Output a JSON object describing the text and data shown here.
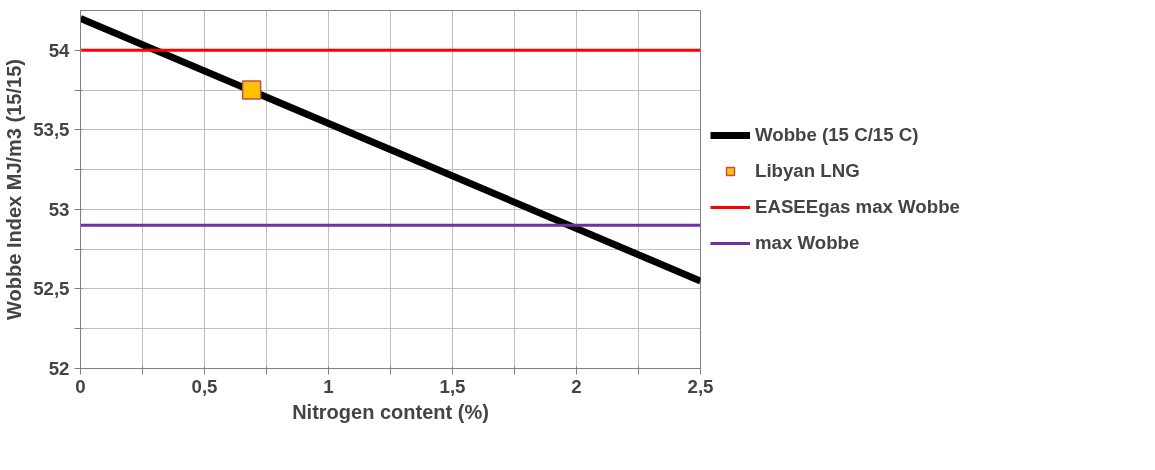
{
  "chart_data": {
    "type": "line",
    "xlabel": "Nitrogen content (%)",
    "ylabel": "Wobbe Index MJ/m3 (15/15)",
    "xlim": [
      0,
      2.5
    ],
    "ylim": [
      52,
      54.25
    ],
    "xticks": [
      0,
      {
        "value": 0.25,
        "label": null
      },
      {
        "value": 0.5,
        "label": "0,5"
      },
      {
        "value": 0.75,
        "label": null
      },
      1,
      {
        "value": 1.25,
        "label": null
      },
      {
        "value": 1.5,
        "label": "1,5"
      },
      {
        "value": 1.75,
        "label": null
      },
      2,
      {
        "value": 2.25,
        "label": null
      },
      {
        "value": 2.5,
        "label": "2,5"
      }
    ],
    "yticks": [
      52,
      {
        "value": 52.25,
        "label": null
      },
      {
        "value": 52.5,
        "label": "52,5"
      },
      {
        "value": 52.75,
        "label": null
      },
      53,
      {
        "value": 53.25,
        "label": null
      },
      {
        "value": 53.5,
        "label": "53,5"
      },
      {
        "value": 53.75,
        "label": null
      },
      54
    ],
    "grid": true,
    "legend": "right",
    "series": [
      {
        "name": "Wobbe (15 C/15 C)",
        "type": "line",
        "color": "#000000",
        "x": [
          0,
          2.5
        ],
        "values": [
          54.2,
          52.55
        ],
        "marker": "none"
      },
      {
        "name": "Libyan LNG",
        "type": "scatter",
        "color": "#ffc000",
        "x": [
          0.69
        ],
        "values": [
          53.75
        ],
        "marker": "square"
      }
    ],
    "ref_lines": [
      {
        "axis": "y",
        "value": 54,
        "label": "EASEEgas max Wobbe",
        "color": "#ff0000"
      },
      {
        "axis": "y",
        "value": 52.9,
        "label": "max Wobbe",
        "color": "#7030a0"
      }
    ]
  }
}
